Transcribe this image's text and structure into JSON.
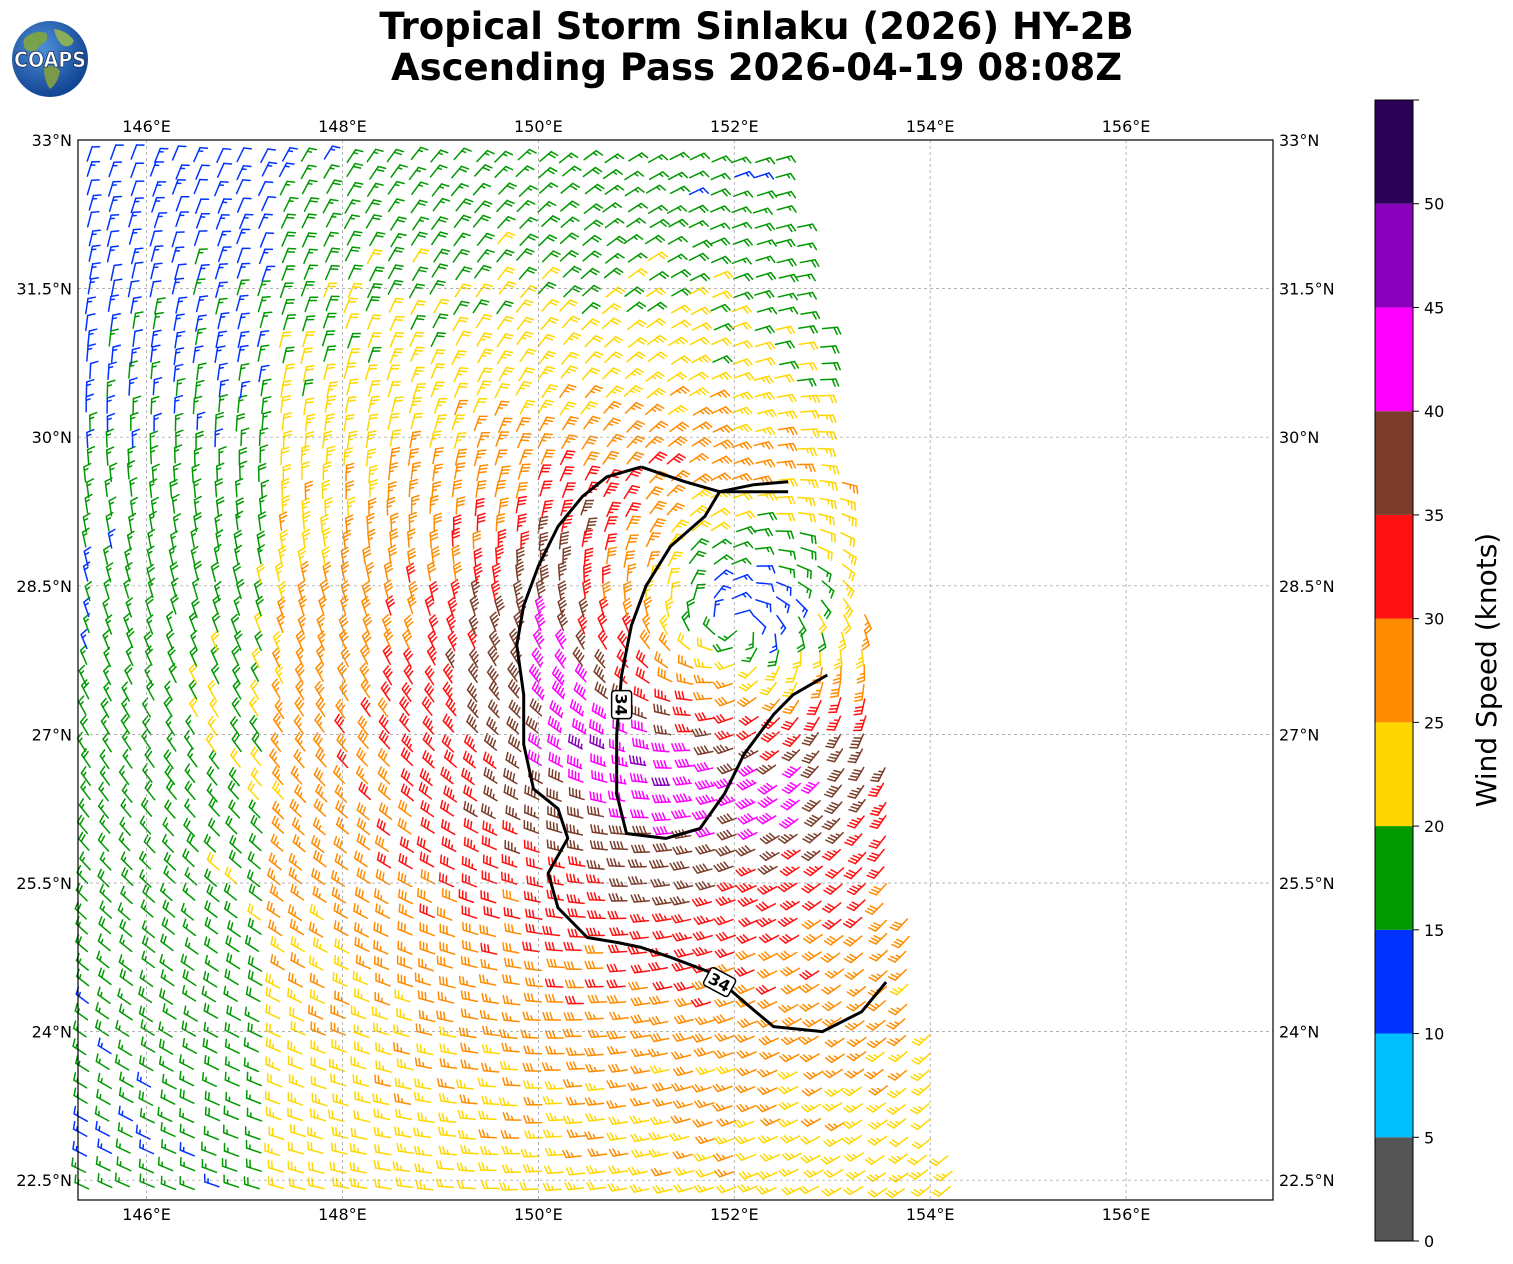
{
  "title": {
    "line1": "Tropical Storm Sinlaku (2026) HY-2B",
    "line2": "Ascending Pass 2026-04-19 08:08Z"
  },
  "logo": {
    "text": "COAPS",
    "icon": "globe-icon"
  },
  "map": {
    "lon_range": [
      145.3,
      157.5
    ],
    "lat_range": [
      22.3,
      33.0
    ],
    "lon_ticks": [
      {
        "value": 146,
        "label": "146°E"
      },
      {
        "value": 148,
        "label": "148°E"
      },
      {
        "value": 150,
        "label": "150°E"
      },
      {
        "value": 152,
        "label": "152°E"
      },
      {
        "value": 154,
        "label": "154°E"
      },
      {
        "value": 156,
        "label": "156°E"
      }
    ],
    "lat_ticks": [
      {
        "value": 33,
        "label": "33°N"
      },
      {
        "value": 31.5,
        "label": "31.5°N"
      },
      {
        "value": 30,
        "label": "30°N"
      },
      {
        "value": 28.5,
        "label": "28.5°N"
      },
      {
        "value": 27,
        "label": "27°N"
      },
      {
        "value": 25.5,
        "label": "25.5°N"
      },
      {
        "value": 24,
        "label": "24°N"
      },
      {
        "value": 22.5,
        "label": "22.5°N"
      }
    ],
    "grid": true,
    "storm_center": {
      "lon": 152.0,
      "lat": 28.1
    },
    "swath_east_edge": [
      [
        33.0,
        152.5
      ],
      [
        31.0,
        152.9
      ],
      [
        29.0,
        153.2
      ],
      [
        27.0,
        153.5
      ],
      [
        25.5,
        153.7
      ],
      [
        24.0,
        154.0
      ],
      [
        22.3,
        154.3
      ]
    ],
    "contour_34kt": {
      "level_label": "34",
      "label_positions": [
        {
          "lon": 150.85,
          "lat": 27.3
        },
        {
          "lon": 151.85,
          "lat": 24.5
        }
      ],
      "paths": [
        [
          [
            151.05,
            29.7
          ],
          [
            151.5,
            29.55
          ],
          [
            151.85,
            29.45
          ],
          [
            152.2,
            29.52
          ],
          [
            152.55,
            29.55
          ]
        ],
        [
          [
            151.85,
            29.45
          ],
          [
            152.55,
            29.45
          ]
        ],
        [
          [
            151.05,
            29.7
          ],
          [
            150.7,
            29.6
          ],
          [
            150.45,
            29.4
          ],
          [
            150.2,
            29.1
          ],
          [
            150.0,
            28.7
          ],
          [
            149.85,
            28.3
          ],
          [
            149.78,
            27.9
          ],
          [
            149.85,
            27.4
          ],
          [
            149.85,
            26.9
          ],
          [
            149.95,
            26.45
          ],
          [
            150.2,
            26.25
          ],
          [
            150.3,
            25.95
          ],
          [
            150.1,
            25.6
          ],
          [
            150.2,
            25.25
          ],
          [
            150.5,
            24.95
          ],
          [
            150.8,
            24.9
          ],
          [
            151.05,
            24.85
          ],
          [
            151.35,
            24.75
          ],
          [
            151.75,
            24.6
          ],
          [
            152.1,
            24.3
          ],
          [
            152.4,
            24.05
          ],
          [
            152.9,
            24.0
          ],
          [
            153.3,
            24.2
          ],
          [
            153.55,
            24.5
          ]
        ],
        [
          [
            151.85,
            29.45
          ],
          [
            151.7,
            29.2
          ],
          [
            151.35,
            28.9
          ],
          [
            151.1,
            28.5
          ],
          [
            150.95,
            28.1
          ],
          [
            150.85,
            27.6
          ],
          [
            150.8,
            27.0
          ],
          [
            150.8,
            26.4
          ],
          [
            150.9,
            26.0
          ],
          [
            151.3,
            25.95
          ],
          [
            151.65,
            26.05
          ],
          [
            151.9,
            26.4
          ],
          [
            152.1,
            26.8
          ],
          [
            152.4,
            27.2
          ],
          [
            152.6,
            27.4
          ],
          [
            152.95,
            27.6
          ]
        ]
      ]
    },
    "wind_barbs_sample_spacing_deg": {
      "lon": 0.22,
      "lat": 0.17
    }
  },
  "colorbar": {
    "label": "Wind Speed (knots)",
    "bins": [
      {
        "min": 0,
        "max": 5,
        "color": "#555555"
      },
      {
        "min": 5,
        "max": 10,
        "color": "#00bfff"
      },
      {
        "min": 10,
        "max": 15,
        "color": "#0033ff"
      },
      {
        "min": 15,
        "max": 20,
        "color": "#009900"
      },
      {
        "min": 20,
        "max": 25,
        "color": "#ffd700"
      },
      {
        "min": 25,
        "max": 30,
        "color": "#ff8c00"
      },
      {
        "min": 30,
        "max": 35,
        "color": "#ff1111"
      },
      {
        "min": 35,
        "max": 40,
        "color": "#7b3d2a"
      },
      {
        "min": 40,
        "max": 45,
        "color": "#ff00ff"
      },
      {
        "min": 45,
        "max": 50,
        "color": "#8800bb"
      },
      {
        "min": 50,
        "max": 55,
        "color": "#2b0057"
      }
    ],
    "tick_labels": [
      "0",
      "5",
      "10",
      "15",
      "20",
      "25",
      "30",
      "35",
      "40",
      "45",
      "50"
    ]
  }
}
